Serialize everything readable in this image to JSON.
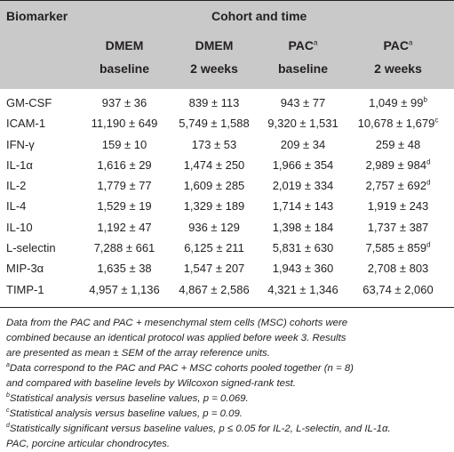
{
  "table": {
    "header": {
      "biomarker": "Biomarker",
      "cohort_time": "Cohort and time",
      "columns": [
        {
          "line1": "DMEM",
          "sup": "",
          "line2": "baseline"
        },
        {
          "line1": "DMEM",
          "sup": "",
          "line2": "2 weeks"
        },
        {
          "line1": "PAC",
          "sup": "a",
          "line2": "baseline"
        },
        {
          "line1": "PAC",
          "sup": "a",
          "line2": "2 weeks"
        }
      ]
    },
    "rows": [
      {
        "name": "GM-CSF",
        "v1": "937 ± 36",
        "v2": "839 ± 113",
        "v3": "943 ± 77",
        "v4": "1,049 ± 99",
        "v4_sup": "b"
      },
      {
        "name": "ICAM-1",
        "v1": "11,190 ± 649",
        "v2": "5,749 ± 1,588",
        "v3": "9,320 ± 1,531",
        "v4": "10,678 ± 1,679",
        "v4_sup": "c"
      },
      {
        "name": "IFN-γ",
        "v1": "159 ± 10",
        "v2": "173 ± 53",
        "v3": "209 ± 34",
        "v4": "259 ± 48",
        "v4_sup": ""
      },
      {
        "name": "IL-1α",
        "v1": "1,616 ± 29",
        "v2": "1,474 ± 250",
        "v3": "1,966 ± 354",
        "v4": "2,989 ± 984",
        "v4_sup": "d"
      },
      {
        "name": "IL-2",
        "v1": "1,779 ± 77",
        "v2": "1,609 ± 285",
        "v3": "2,019 ± 334",
        "v4": "2,757 ± 692",
        "v4_sup": "d"
      },
      {
        "name": "IL-4",
        "v1": "1,529 ± 19",
        "v2": "1,329 ± 189",
        "v3": "1,714 ± 143",
        "v4": "1,919 ± 243",
        "v4_sup": ""
      },
      {
        "name": "IL-10",
        "v1": "1,192 ± 47",
        "v2": "936 ± 129",
        "v3": "1,398 ± 184",
        "v4": "1,737 ± 387",
        "v4_sup": ""
      },
      {
        "name": "L-selectin",
        "v1": "7,288 ± 661",
        "v2": "6,125 ± 211",
        "v3": "5,831 ± 630",
        "v4": "7,585 ± 859",
        "v4_sup": "d"
      },
      {
        "name": "MIP-3α",
        "v1": "1,635 ± 38",
        "v2": "1,547 ± 207",
        "v3": "1,943 ± 360",
        "v4": "2,708 ± 803",
        "v4_sup": ""
      },
      {
        "name": "TIMP-1",
        "v1": "4,957 ± 1,136",
        "v2": "4,867 ± 2,586",
        "v3": "4,321 ± 1,346",
        "v4": "63,74 ± 2,060",
        "v4_sup": ""
      }
    ]
  },
  "footnotes": {
    "intro": [
      "Data from the PAC and PAC + mesenchymal stem cells (MSC) cohorts were",
      "combined because an identical protocol was applied before week 3. Results",
      "are presented as mean ± SEM of the array reference units."
    ],
    "a_mark": "a",
    "a_line1": "Data correspond to the PAC and PAC + MSC cohorts pooled together (n = 8)",
    "a_line2": "and compared with baseline levels by Wilcoxon signed-rank test.",
    "b_mark": "b",
    "b_text": "Statistical analysis versus baseline values, p = 0.069.",
    "c_mark": "c",
    "c_text": "Statistical analysis versus baseline values, p = 0.09.",
    "d_mark": "d",
    "d_text": "Statistically significant versus baseline values, p ≤ 0.05 for IL-2, L-selectin, and IL-1α.",
    "pac": "PAC, porcine articular chondrocytes."
  }
}
